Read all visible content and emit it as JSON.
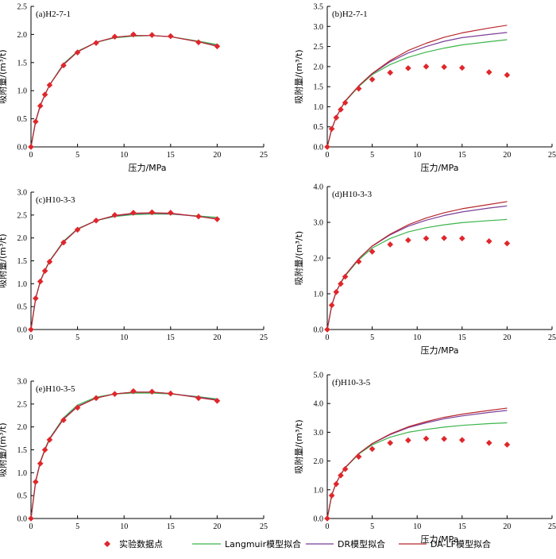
{
  "legend": {
    "experimental": "实验数据点",
    "langmuir": "Langmuir模型拟合",
    "dr": "DR模型拟合",
    "dalf": "DA-LF模型拟合"
  },
  "colors": {
    "experimental": "#e0262b",
    "langmuir": "#3cb54a",
    "dr": "#7b3f98",
    "dalf": "#b8272e",
    "axis": "#000000"
  },
  "chart_data": [
    {
      "id": "a",
      "type": "line",
      "title": "(a)H2-7-1",
      "xlabel": "压力/MPa",
      "ylabel": "吸附量/(m³/t)",
      "xlim": [
        0,
        25
      ],
      "ylim": [
        0,
        2.5
      ],
      "xticks": [
        "0",
        "5",
        "10",
        "15",
        "20",
        "25"
      ],
      "yticks": [
        "0.0",
        "0.5",
        "1.0",
        "1.5",
        "2.0",
        "2.5"
      ],
      "experimental": {
        "x": [
          0,
          0.5,
          1,
          1.5,
          2,
          3.5,
          5,
          7,
          9,
          11,
          13,
          15,
          18,
          20
        ],
        "y": [
          0,
          0.45,
          0.73,
          0.93,
          1.1,
          1.45,
          1.68,
          1.85,
          1.96,
          2.0,
          1.99,
          1.97,
          1.86,
          1.79
        ]
      },
      "series": [
        {
          "key": "langmuir",
          "x": [
            0,
            0.5,
            1,
            1.5,
            2,
            3.5,
            5,
            7,
            9,
            11,
            13,
            15,
            18,
            20
          ],
          "y": [
            0,
            0.46,
            0.74,
            0.93,
            1.1,
            1.48,
            1.7,
            1.86,
            1.94,
            1.97,
            1.98,
            1.96,
            1.88,
            1.82
          ]
        },
        {
          "key": "dr",
          "x": [
            0,
            0.5,
            1,
            1.5,
            2,
            3.5,
            5,
            7,
            9,
            11,
            13,
            15,
            18,
            20
          ],
          "y": [
            0,
            0.46,
            0.74,
            0.93,
            1.1,
            1.47,
            1.69,
            1.86,
            1.95,
            1.98,
            1.98,
            1.96,
            1.87,
            1.8
          ]
        },
        {
          "key": "dalf",
          "x": [
            0,
            0.5,
            1,
            1.5,
            2,
            3.5,
            5,
            7,
            9,
            11,
            13,
            15,
            18,
            20
          ],
          "y": [
            0,
            0.45,
            0.73,
            0.93,
            1.1,
            1.46,
            1.69,
            1.86,
            1.95,
            1.98,
            1.98,
            1.96,
            1.87,
            1.79
          ]
        }
      ]
    },
    {
      "id": "b",
      "type": "line",
      "title": "(b)H2-7-1",
      "xlabel": "压力/MPa",
      "ylabel": "吸附量/(m³/t)",
      "xlim": [
        0,
        25
      ],
      "ylim": [
        0,
        3.5
      ],
      "xticks": [
        "0",
        "5",
        "10",
        "15",
        "20",
        "25"
      ],
      "yticks": [
        "0.0",
        "0.5",
        "1.0",
        "1.5",
        "2.0",
        "2.5",
        "3.0",
        "3.5"
      ],
      "experimental": {
        "x": [
          0,
          0.5,
          1,
          1.5,
          2,
          3.5,
          5,
          7,
          9,
          11,
          13,
          15,
          18,
          20
        ],
        "y": [
          0,
          0.45,
          0.73,
          0.93,
          1.1,
          1.45,
          1.68,
          1.85,
          1.96,
          2.0,
          1.99,
          1.97,
          1.86,
          1.79
        ]
      },
      "series": [
        {
          "key": "langmuir",
          "x": [
            0,
            0.5,
            1,
            1.5,
            2,
            3.5,
            5,
            7,
            9,
            11,
            13,
            15,
            18,
            20
          ],
          "y": [
            0,
            0.45,
            0.74,
            0.95,
            1.13,
            1.5,
            1.8,
            2.05,
            2.23,
            2.36,
            2.46,
            2.54,
            2.62,
            2.67
          ]
        },
        {
          "key": "dr",
          "x": [
            0,
            0.5,
            1,
            1.5,
            2,
            3.5,
            5,
            7,
            9,
            11,
            13,
            15,
            18,
            20
          ],
          "y": [
            0,
            0.45,
            0.74,
            0.95,
            1.14,
            1.52,
            1.82,
            2.12,
            2.34,
            2.5,
            2.63,
            2.72,
            2.8,
            2.85
          ]
        },
        {
          "key": "dalf",
          "x": [
            0,
            0.5,
            1,
            1.5,
            2,
            3.5,
            5,
            7,
            9,
            11,
            13,
            15,
            18,
            20
          ],
          "y": [
            0,
            0.45,
            0.74,
            0.95,
            1.14,
            1.52,
            1.83,
            2.15,
            2.4,
            2.58,
            2.73,
            2.84,
            2.96,
            3.03
          ]
        }
      ]
    },
    {
      "id": "c",
      "type": "line",
      "title": "(c)H10-3-3",
      "xlabel": "",
      "ylabel": "吸附量/(m³/t)",
      "xlim": [
        0,
        25
      ],
      "ylim": [
        0,
        3.0
      ],
      "xticks": [
        "0",
        "5",
        "10",
        "15",
        "20",
        "25"
      ],
      "yticks": [
        "0.0",
        "0.5",
        "1.0",
        "1.5",
        "2.0",
        "2.5",
        "3.0"
      ],
      "experimental": {
        "x": [
          0,
          0.5,
          1,
          1.5,
          2,
          3.5,
          5,
          7,
          9,
          11,
          13,
          15,
          18,
          20
        ],
        "y": [
          0,
          0.68,
          1.05,
          1.28,
          1.48,
          1.9,
          2.18,
          2.38,
          2.5,
          2.55,
          2.56,
          2.55,
          2.47,
          2.41
        ]
      },
      "series": [
        {
          "key": "langmuir",
          "x": [
            0,
            0.5,
            1,
            1.5,
            2,
            3.5,
            5,
            7,
            9,
            11,
            13,
            15,
            18,
            20
          ],
          "y": [
            0,
            0.68,
            1.06,
            1.3,
            1.5,
            1.93,
            2.2,
            2.38,
            2.47,
            2.51,
            2.52,
            2.52,
            2.48,
            2.45
          ]
        },
        {
          "key": "dr",
          "x": [
            0,
            0.5,
            1,
            1.5,
            2,
            3.5,
            5,
            7,
            9,
            11,
            13,
            15,
            18,
            20
          ],
          "y": [
            0,
            0.68,
            1.05,
            1.29,
            1.49,
            1.92,
            2.19,
            2.38,
            2.48,
            2.53,
            2.54,
            2.53,
            2.47,
            2.42
          ]
        },
        {
          "key": "dalf",
          "x": [
            0,
            0.5,
            1,
            1.5,
            2,
            3.5,
            5,
            7,
            9,
            11,
            13,
            15,
            18,
            20
          ],
          "y": [
            0,
            0.68,
            1.05,
            1.29,
            1.49,
            1.91,
            2.19,
            2.38,
            2.49,
            2.54,
            2.55,
            2.54,
            2.47,
            2.41
          ]
        }
      ]
    },
    {
      "id": "d",
      "type": "line",
      "title": "(d)H10-3-3",
      "xlabel": "压力/MPa",
      "ylabel": "吸附量/(m³/t)",
      "xlim": [
        0,
        25
      ],
      "ylim": [
        0,
        4.0
      ],
      "xticks": [
        "0",
        "5",
        "10",
        "15",
        "20",
        "25"
      ],
      "yticks": [
        "0.0",
        "1.0",
        "2.0",
        "3.0",
        "4.0"
      ],
      "experimental": {
        "x": [
          0,
          0.5,
          1,
          1.5,
          2,
          3.5,
          5,
          7,
          9,
          11,
          13,
          15,
          18,
          20
        ],
        "y": [
          0,
          0.68,
          1.05,
          1.28,
          1.48,
          1.9,
          2.18,
          2.38,
          2.5,
          2.55,
          2.56,
          2.55,
          2.47,
          2.41
        ]
      },
      "series": [
        {
          "key": "langmuir",
          "x": [
            0,
            0.5,
            1,
            1.5,
            2,
            3.5,
            5,
            7,
            9,
            11,
            13,
            15,
            18,
            20
          ],
          "y": [
            0,
            0.68,
            1.06,
            1.3,
            1.5,
            1.95,
            2.28,
            2.55,
            2.73,
            2.85,
            2.93,
            2.99,
            3.05,
            3.08
          ]
        },
        {
          "key": "dr",
          "x": [
            0,
            0.5,
            1,
            1.5,
            2,
            3.5,
            5,
            7,
            9,
            11,
            13,
            15,
            18,
            20
          ],
          "y": [
            0,
            0.68,
            1.06,
            1.31,
            1.52,
            1.98,
            2.33,
            2.65,
            2.89,
            3.06,
            3.19,
            3.29,
            3.4,
            3.46
          ]
        },
        {
          "key": "dalf",
          "x": [
            0,
            0.5,
            1,
            1.5,
            2,
            3.5,
            5,
            7,
            9,
            11,
            13,
            15,
            18,
            20
          ],
          "y": [
            0,
            0.68,
            1.06,
            1.31,
            1.52,
            1.98,
            2.34,
            2.67,
            2.93,
            3.12,
            3.27,
            3.38,
            3.5,
            3.58
          ]
        }
      ]
    },
    {
      "id": "e",
      "type": "line",
      "title": "(e)H10-3-5",
      "xlabel": "",
      "ylabel": "吸附量/(m³/t)",
      "xlim": [
        0,
        25
      ],
      "ylim": [
        0,
        3.0
      ],
      "xticks": [
        "0",
        "5",
        "10",
        "15",
        "20",
        "25"
      ],
      "yticks": [
        "0.0",
        "0.5",
        "1.0",
        "1.5",
        "2.0",
        "2.5",
        "3.0"
      ],
      "experimental": {
        "x": [
          0,
          0.5,
          1,
          1.5,
          2,
          3.5,
          5,
          7,
          9,
          11,
          13,
          15,
          18,
          20
        ],
        "y": [
          0,
          0.8,
          1.2,
          1.5,
          1.72,
          2.15,
          2.42,
          2.63,
          2.72,
          2.78,
          2.77,
          2.73,
          2.63,
          2.57
        ]
      },
      "series": [
        {
          "key": "langmuir",
          "x": [
            0,
            0.5,
            1,
            1.5,
            2,
            3.5,
            5,
            7,
            9,
            11,
            13,
            15,
            18,
            20
          ],
          "y": [
            0,
            0.82,
            1.24,
            1.52,
            1.75,
            2.2,
            2.48,
            2.65,
            2.72,
            2.74,
            2.74,
            2.72,
            2.66,
            2.61
          ]
        },
        {
          "key": "dr",
          "x": [
            0,
            0.5,
            1,
            1.5,
            2,
            3.5,
            5,
            7,
            9,
            11,
            13,
            15,
            18,
            20
          ],
          "y": [
            0,
            0.81,
            1.23,
            1.51,
            1.74,
            2.18,
            2.45,
            2.63,
            2.72,
            2.76,
            2.76,
            2.73,
            2.65,
            2.59
          ]
        },
        {
          "key": "dalf",
          "x": [
            0,
            0.5,
            1,
            1.5,
            2,
            3.5,
            5,
            7,
            9,
            11,
            13,
            15,
            18,
            20
          ],
          "y": [
            0,
            0.8,
            1.22,
            1.5,
            1.73,
            2.17,
            2.44,
            2.63,
            2.72,
            2.76,
            2.76,
            2.73,
            2.64,
            2.58
          ]
        }
      ]
    },
    {
      "id": "f",
      "type": "line",
      "title": "(f)H10-3-5",
      "xlabel": "压力/MPa",
      "ylabel": "吸附量/(m³/t)",
      "xlim": [
        0,
        25
      ],
      "ylim": [
        0,
        5.0
      ],
      "xticks": [
        "0",
        "5",
        "10",
        "15",
        "20",
        "25"
      ],
      "yticks": [
        "0.0",
        "1.0",
        "2.0",
        "3.0",
        "4.0",
        "5.0"
      ],
      "experimental": {
        "x": [
          0,
          0.5,
          1,
          1.5,
          2,
          3.5,
          5,
          7,
          9,
          11,
          13,
          15,
          18,
          20
        ],
        "y": [
          0,
          0.8,
          1.2,
          1.5,
          1.72,
          2.15,
          2.42,
          2.63,
          2.72,
          2.78,
          2.77,
          2.73,
          2.63,
          2.57
        ]
      },
      "series": [
        {
          "key": "langmuir",
          "x": [
            0,
            0.5,
            1,
            1.5,
            2,
            3.5,
            5,
            7,
            9,
            11,
            13,
            15,
            18,
            20
          ],
          "y": [
            0,
            0.82,
            1.24,
            1.52,
            1.76,
            2.24,
            2.56,
            2.83,
            3.0,
            3.1,
            3.18,
            3.24,
            3.3,
            3.33
          ]
        },
        {
          "key": "dr",
          "x": [
            0,
            0.5,
            1,
            1.5,
            2,
            3.5,
            5,
            7,
            9,
            11,
            13,
            15,
            18,
            20
          ],
          "y": [
            0,
            0.82,
            1.24,
            1.53,
            1.77,
            2.26,
            2.6,
            2.92,
            3.16,
            3.33,
            3.47,
            3.57,
            3.69,
            3.76
          ]
        },
        {
          "key": "dalf",
          "x": [
            0,
            0.5,
            1,
            1.5,
            2,
            3.5,
            5,
            7,
            9,
            11,
            13,
            15,
            18,
            20
          ],
          "y": [
            0,
            0.82,
            1.24,
            1.53,
            1.77,
            2.26,
            2.61,
            2.94,
            3.19,
            3.37,
            3.52,
            3.63,
            3.76,
            3.84
          ]
        }
      ]
    }
  ]
}
